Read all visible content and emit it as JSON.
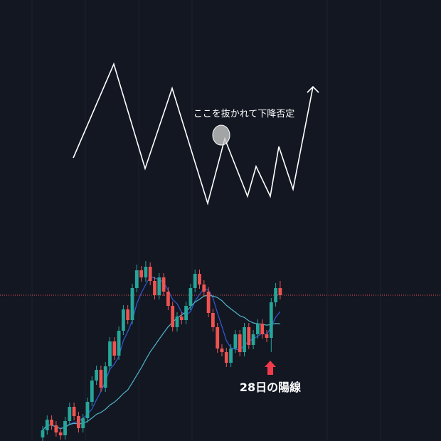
{
  "chart_data": {
    "type": "candlestick",
    "annotations": [
      "ここを抜かれて下降否定",
      "28日の陽線"
    ],
    "ylim": [
      0,
      620
    ],
    "up_color": "#26a69a",
    "down_color": "#ef5350",
    "open": [
      5,
      15,
      30,
      22,
      12,
      8,
      28,
      48,
      35,
      18,
      32,
      55,
      85,
      100,
      75,
      105,
      140,
      120,
      155,
      185,
      170,
      215,
      240,
      230,
      245,
      225,
      205,
      230,
      210,
      190,
      160,
      175,
      170,
      190,
      215,
      235,
      220,
      210,
      180,
      160,
      130,
      125,
      110,
      130,
      150,
      125,
      160,
      135,
      150,
      165,
      150,
      145,
      195,
      215
    ],
    "high": [
      21,
      36,
      36,
      28,
      18,
      34,
      54,
      54,
      41,
      38,
      61,
      91,
      106,
      106,
      111,
      146,
      146,
      161,
      191,
      191,
      221,
      248,
      246,
      253,
      251,
      231,
      236,
      236,
      216,
      196,
      181,
      181,
      196,
      221,
      241,
      241,
      226,
      216,
      186,
      166,
      136,
      131,
      136,
      156,
      156,
      166,
      166,
      156,
      171,
      171,
      156,
      201,
      222,
      225
    ],
    "low": [
      0,
      9,
      16,
      6,
      2,
      2,
      22,
      29,
      12,
      12,
      26,
      49,
      79,
      69,
      69,
      99,
      114,
      114,
      149,
      164,
      164,
      209,
      224,
      224,
      219,
      199,
      199,
      204,
      184,
      154,
      154,
      164,
      164,
      184,
      209,
      214,
      204,
      174,
      154,
      124,
      119,
      104,
      104,
      124,
      119,
      119,
      129,
      129,
      144,
      144,
      139,
      125,
      189,
      199
    ],
    "close": [
      15,
      30,
      22,
      12,
      8,
      28,
      48,
      35,
      18,
      32,
      55,
      85,
      100,
      75,
      105,
      140,
      120,
      155,
      185,
      170,
      215,
      240,
      230,
      245,
      225,
      205,
      230,
      210,
      190,
      160,
      175,
      170,
      190,
      215,
      235,
      220,
      210,
      180,
      160,
      130,
      125,
      110,
      130,
      150,
      125,
      160,
      135,
      150,
      165,
      150,
      145,
      195,
      215,
      205
    ]
  }
}
